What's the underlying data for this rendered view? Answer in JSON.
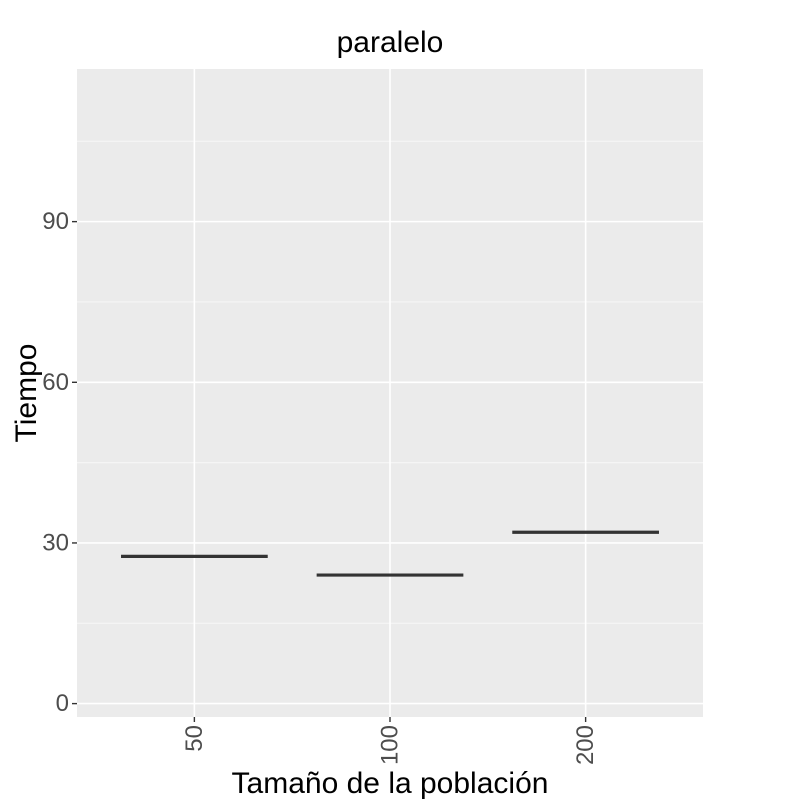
{
  "chart_data": {
    "type": "boxplot",
    "title": "paralelo",
    "xlabel": "Tamaño de la población",
    "ylabel": "Tiempo",
    "categories": [
      "50",
      "100",
      "200"
    ],
    "values": [
      27.5,
      24,
      32
    ],
    "ylim": [
      -2.5,
      118.5
    ],
    "yticks": [
      0,
      30,
      60,
      90
    ],
    "yticklabels": [
      "0",
      "30",
      "60",
      "90"
    ],
    "grid": true,
    "legend": "none"
  },
  "colors": {
    "panel_bg": "#ebebeb",
    "grid_major": "#ffffff",
    "grid_minor": "#f5f5f5",
    "line": "#333333",
    "tick_text": "#4d4d4d",
    "title_text": "#000000"
  }
}
